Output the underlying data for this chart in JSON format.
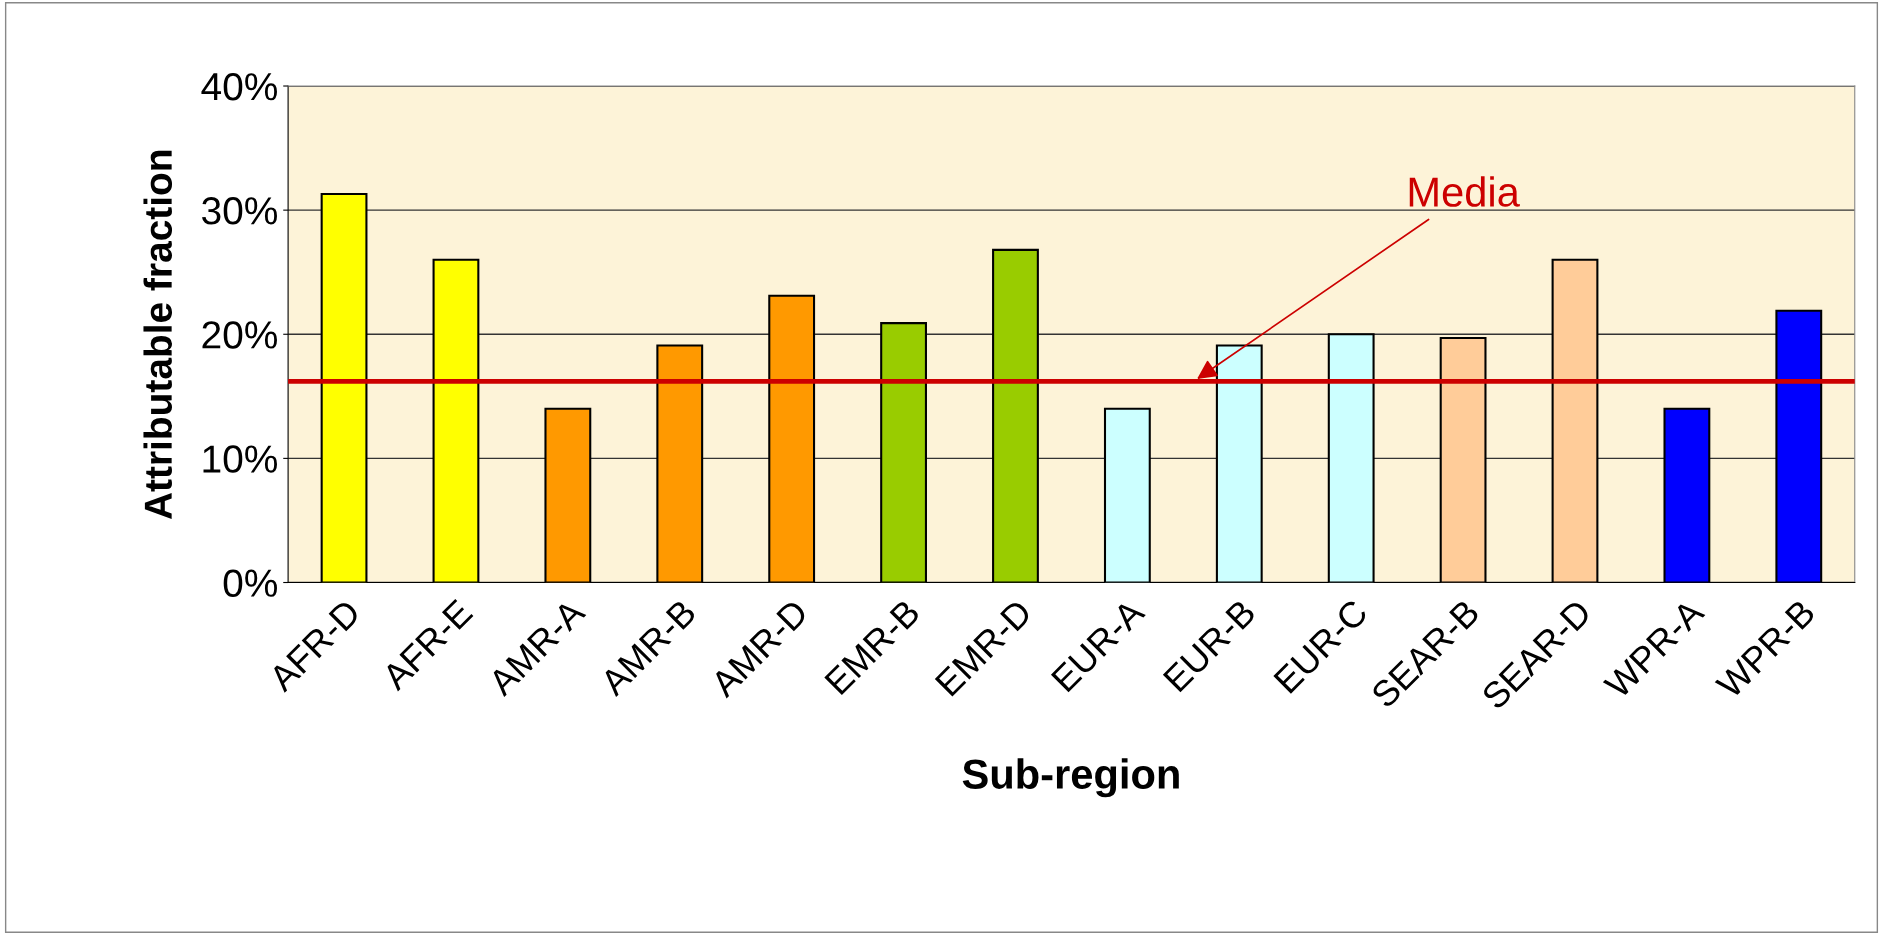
{
  "chart_data": {
    "type": "bar",
    "xlabel": "Sub-region",
    "ylabel": "Attributable fraction",
    "categories": [
      "AFR-D",
      "AFR-E",
      "AMR-A",
      "AMR-B",
      "AMR-D",
      "EMR-B",
      "EMR-D",
      "EUR-A",
      "EUR-B",
      "EUR-C",
      "SEAR-B",
      "SEAR-D",
      "WPR-A",
      "WPR-B"
    ],
    "values": [
      31.3,
      26.0,
      14.0,
      19.1,
      23.1,
      20.9,
      26.8,
      14.0,
      19.1,
      20.0,
      19.7,
      26.0,
      14.0,
      21.9
    ],
    "colors": [
      "#ffff00",
      "#ffff00",
      "#ff9900",
      "#ff9900",
      "#ff9900",
      "#99cc00",
      "#99cc00",
      "#ccffff",
      "#ccffff",
      "#ccffff",
      "#ffcc99",
      "#ffcc99",
      "#0000ff",
      "#0000ff"
    ],
    "ylim": [
      0,
      40
    ],
    "yticks": [
      {
        "value": 0,
        "label": "0%"
      },
      {
        "value": 10,
        "label": "10%"
      },
      {
        "value": 20,
        "label": "20%"
      },
      {
        "value": 30,
        "label": "30%"
      },
      {
        "value": 40,
        "label": "40%"
      }
    ],
    "grid": "y",
    "ref_lines": [
      {
        "axis": "y",
        "value": 16.2,
        "label": "Media",
        "color": "#cc0000"
      }
    ]
  }
}
